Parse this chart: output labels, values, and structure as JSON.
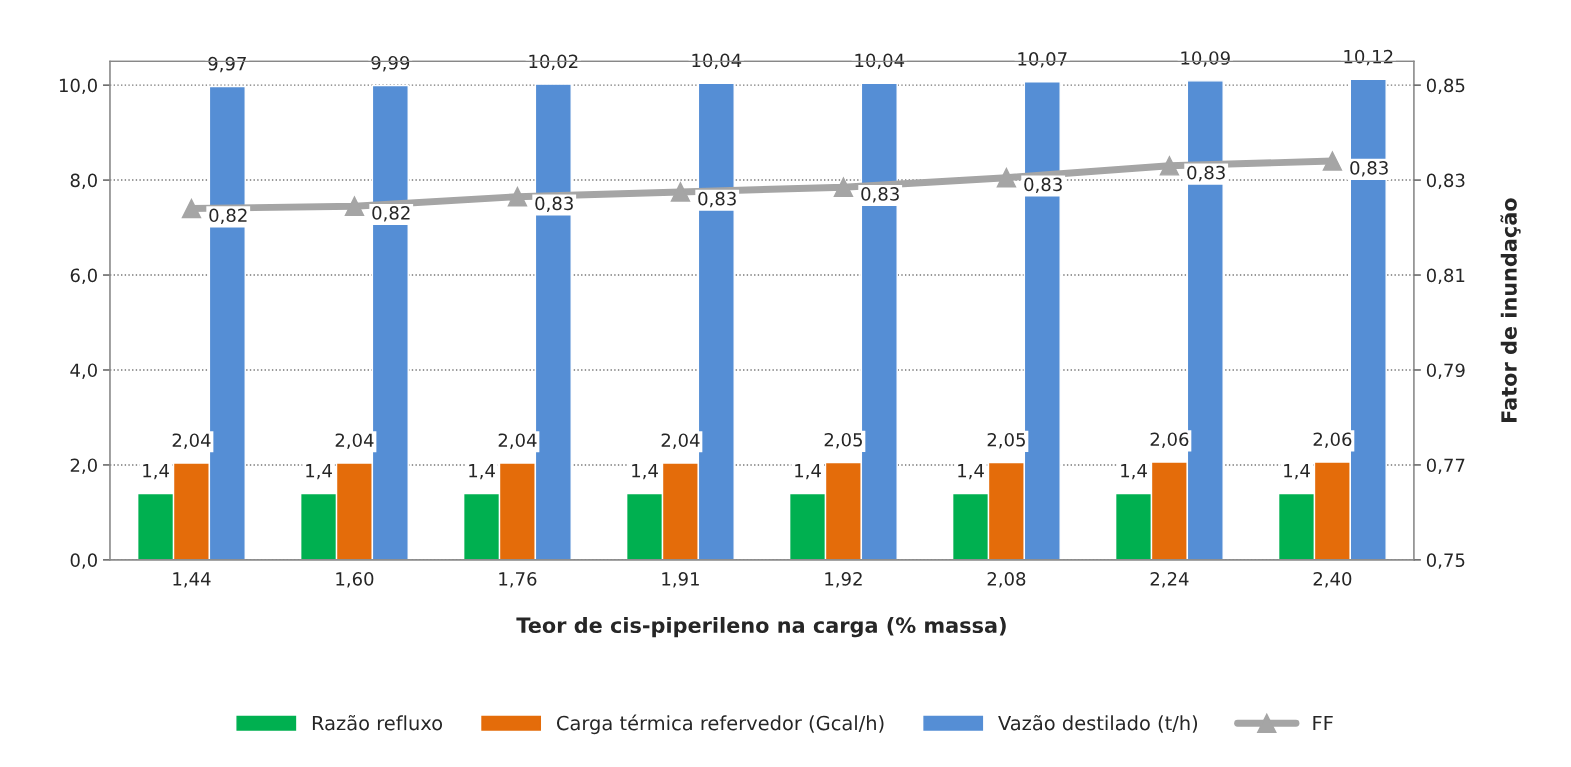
{
  "chart_data": {
    "type": "bar",
    "xlabel": "Teor de cis-piperileno na carga (% massa)",
    "y2label": "Fator de inundação",
    "categories": [
      "1,44",
      "1,60",
      "1,76",
      "1,91",
      "1,92",
      "2,08",
      "2,24",
      "2,40"
    ],
    "series": [
      {
        "name": "Razão refluxo",
        "color": "#00b050",
        "values": [
          1.4,
          1.4,
          1.4,
          1.4,
          1.4,
          1.4,
          1.4,
          1.4
        ],
        "value_labels": [
          "1,4",
          "1,4",
          "1,4",
          "1,4",
          "1,4",
          "1,4",
          "1,4",
          "1,4"
        ]
      },
      {
        "name": "Carga térmica refervedor (Gcal/h)",
        "color": "#e46c0a",
        "values": [
          2.04,
          2.04,
          2.04,
          2.04,
          2.05,
          2.05,
          2.06,
          2.06
        ],
        "value_labels": [
          "2,04",
          "2,04",
          "2,04",
          "2,04",
          "2,05",
          "2,05",
          "2,06",
          "2,06"
        ]
      },
      {
        "name": "Vazão destilado (t/h)",
        "color": "#558ed5",
        "values": [
          9.97,
          9.99,
          10.02,
          10.04,
          10.04,
          10.07,
          10.09,
          10.12
        ],
        "value_labels": [
          "9,97",
          "9,99",
          "10,02",
          "10,04",
          "10,04",
          "10,07",
          "10,09",
          "10,12"
        ]
      },
      {
        "name": "FF",
        "type": "line",
        "axis": "y2",
        "color": "#a5a5a5",
        "marker": "triangle",
        "values": [
          0.824,
          0.8245,
          0.8265,
          0.8275,
          0.8285,
          0.8305,
          0.833,
          0.834
        ],
        "value_labels": [
          "0,82",
          "0,82",
          "0,83",
          "0,83",
          "0,83",
          "0,83",
          "0,83",
          "0,83"
        ]
      }
    ],
    "ylim": [
      0,
      10.5
    ],
    "yticks": [
      {
        "value": 0,
        "label": "0,0"
      },
      {
        "value": 2,
        "label": "2,0"
      },
      {
        "value": 4,
        "label": "4,0"
      },
      {
        "value": 6,
        "label": "6,0"
      },
      {
        "value": 8,
        "label": "8,0"
      },
      {
        "value": 10,
        "label": "10,0"
      }
    ],
    "y2lim": [
      0.75,
      0.855
    ],
    "y2ticks": [
      {
        "value": 0.75,
        "label": "0,75"
      },
      {
        "value": 0.77,
        "label": "0,77"
      },
      {
        "value": 0.79,
        "label": "0,79"
      },
      {
        "value": 0.81,
        "label": "0,81"
      },
      {
        "value": 0.83,
        "label": "0,83"
      },
      {
        "value": 0.85,
        "label": "0,85"
      }
    ],
    "grid": "y",
    "legend": "bottom"
  }
}
